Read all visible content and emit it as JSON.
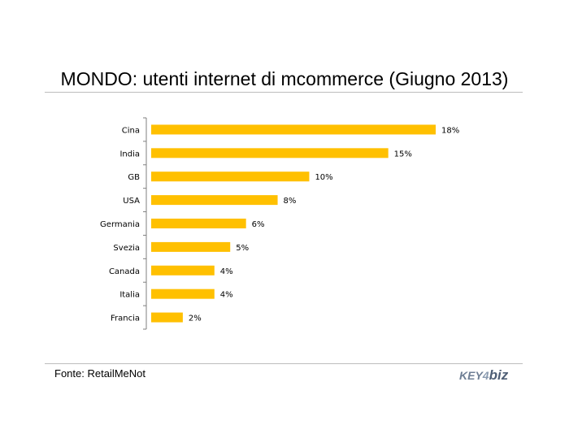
{
  "chart_data": {
    "type": "bar",
    "orientation": "horizontal",
    "title": "MONDO: utenti internet di mcommerce (Giugno 2013)",
    "categories": [
      "Cina",
      "India",
      "GB",
      "USA",
      "Germania",
      "Svezia",
      "Canada",
      "Italia",
      "Francia"
    ],
    "values": [
      18,
      15,
      10,
      8,
      6,
      5,
      4,
      4,
      2
    ],
    "data_labels": [
      "18%",
      "15%",
      "10%",
      "8%",
      "6%",
      "5%",
      "4%",
      "4%",
      "2%"
    ],
    "unit": "%",
    "xlim": [
      0,
      18
    ],
    "grid": false,
    "legend": "none",
    "bar_color": "#FFC000"
  },
  "footer": {
    "source": "Fonte: RetailMeNot",
    "logo_key": "KEY",
    "logo_four": "4",
    "logo_biz": "biz"
  }
}
